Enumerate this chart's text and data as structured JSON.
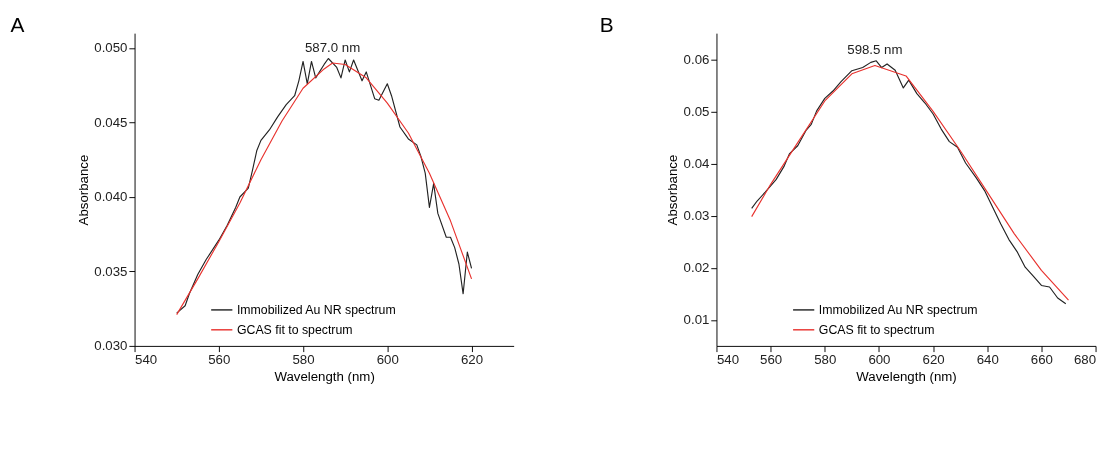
{
  "chart_data": [
    {
      "type": "line",
      "title": "A",
      "xlabel": "Wavelength (nm)",
      "ylabel": "Absorbance",
      "xlim": [
        540,
        630
      ],
      "ylim": [
        0.03,
        0.051
      ],
      "xticks": [
        540,
        560,
        580,
        600,
        620
      ],
      "yticks": [
        {
          "value": 0.03,
          "label": "0.030"
        },
        {
          "value": 0.035,
          "label": "0.035"
        },
        {
          "value": 0.04,
          "label": "0.040"
        },
        {
          "value": 0.045,
          "label": "0.045"
        },
        {
          "value": 0.05,
          "label": "0.050"
        }
      ],
      "grid": false,
      "legend": "bottom",
      "annotations": [
        {
          "text": "587.0 nm",
          "x": 587.0,
          "y": 0.0493
        }
      ],
      "series": [
        {
          "name": "Immobilized Au NR spectrum",
          "color": "#222222",
          "x": [
            550,
            552,
            553,
            555,
            557,
            560,
            562,
            564,
            565,
            567,
            568,
            569,
            570,
            572,
            574,
            576,
            578,
            579,
            580,
            581,
            582,
            583,
            585,
            586,
            588,
            589,
            590,
            591,
            592,
            594,
            595,
            597,
            598,
            600,
            601,
            603,
            605,
            607,
            608,
            609,
            610,
            611,
            612,
            614,
            615,
            616,
            617,
            618,
            619,
            620
          ],
          "values": [
            0.0322,
            0.0327,
            0.0335,
            0.0348,
            0.0358,
            0.0371,
            0.0381,
            0.0393,
            0.04,
            0.0406,
            0.0418,
            0.0431,
            0.0438,
            0.0445,
            0.0454,
            0.0462,
            0.0468,
            0.0478,
            0.0491,
            0.0476,
            0.0491,
            0.048,
            0.0489,
            0.0493,
            0.0487,
            0.048,
            0.0492,
            0.0484,
            0.0492,
            0.0478,
            0.0484,
            0.0466,
            0.0465,
            0.0476,
            0.0468,
            0.0447,
            0.0439,
            0.0435,
            0.0427,
            0.0416,
            0.0393,
            0.0409,
            0.0389,
            0.0373,
            0.0373,
            0.0366,
            0.0355,
            0.0335,
            0.0363,
            0.0352
          ]
        },
        {
          "name": "GCAS fit to spectrum",
          "color": "#e8322e",
          "x": [
            550,
            555,
            560,
            565,
            570,
            575,
            580,
            585,
            587,
            590,
            595,
            600,
            605,
            610,
            615,
            620
          ],
          "values": [
            0.0321,
            0.0345,
            0.037,
            0.0396,
            0.0425,
            0.0451,
            0.0473,
            0.0486,
            0.049,
            0.0489,
            0.048,
            0.0463,
            0.0443,
            0.0416,
            0.0384,
            0.0345
          ]
        }
      ]
    },
    {
      "type": "line",
      "title": "B",
      "xlabel": "Wavelength (nm)",
      "ylabel": "Absorbance",
      "xlim": [
        540,
        680
      ],
      "ylim": [
        0.005,
        0.065
      ],
      "xticks": [
        540,
        560,
        580,
        600,
        620,
        640,
        660,
        680
      ],
      "yticks": [
        0.01,
        0.02,
        0.03,
        0.04,
        0.05,
        0.06
      ],
      "grid": false,
      "legend": "bottom",
      "annotations": [
        {
          "text": "598.5 nm",
          "x": 598.5,
          "y": 0.0597
        }
      ],
      "series": [
        {
          "name": "Immobilized Au NR spectrum",
          "color": "#222222",
          "x": [
            553,
            555,
            558,
            562,
            565,
            567,
            570,
            573,
            575,
            577,
            580,
            583,
            586,
            590,
            594,
            597,
            599,
            601,
            603,
            606,
            609,
            611,
            614,
            617,
            620,
            623,
            626,
            629,
            632,
            636,
            639,
            642,
            645,
            648,
            651,
            654,
            657,
            660,
            663,
            666,
            669
          ],
          "values": [
            0.0314,
            0.0328,
            0.0345,
            0.0369,
            0.0395,
            0.0419,
            0.0434,
            0.0463,
            0.0475,
            0.0501,
            0.0525,
            0.0539,
            0.0557,
            0.0578,
            0.0584,
            0.0594,
            0.0597,
            0.0584,
            0.0591,
            0.0579,
            0.0545,
            0.056,
            0.0534,
            0.0516,
            0.0495,
            0.0466,
            0.0442,
            0.0431,
            0.0401,
            0.0372,
            0.0348,
            0.0316,
            0.0284,
            0.0254,
            0.0231,
            0.0201,
            0.0184,
            0.0166,
            0.0163,
            0.0142,
            0.0131
          ]
        },
        {
          "name": "GCAS fit to spectrum",
          "color": "#e8322e",
          "x": [
            553,
            560,
            570,
            580,
            590,
            598.5,
            610,
            620,
            630,
            640,
            650,
            660,
            670
          ],
          "values": [
            0.0298,
            0.036,
            0.044,
            0.052,
            0.0572,
            0.0588,
            0.0568,
            0.05,
            0.0425,
            0.0345,
            0.0265,
            0.0195,
            0.0138
          ]
        }
      ]
    }
  ]
}
